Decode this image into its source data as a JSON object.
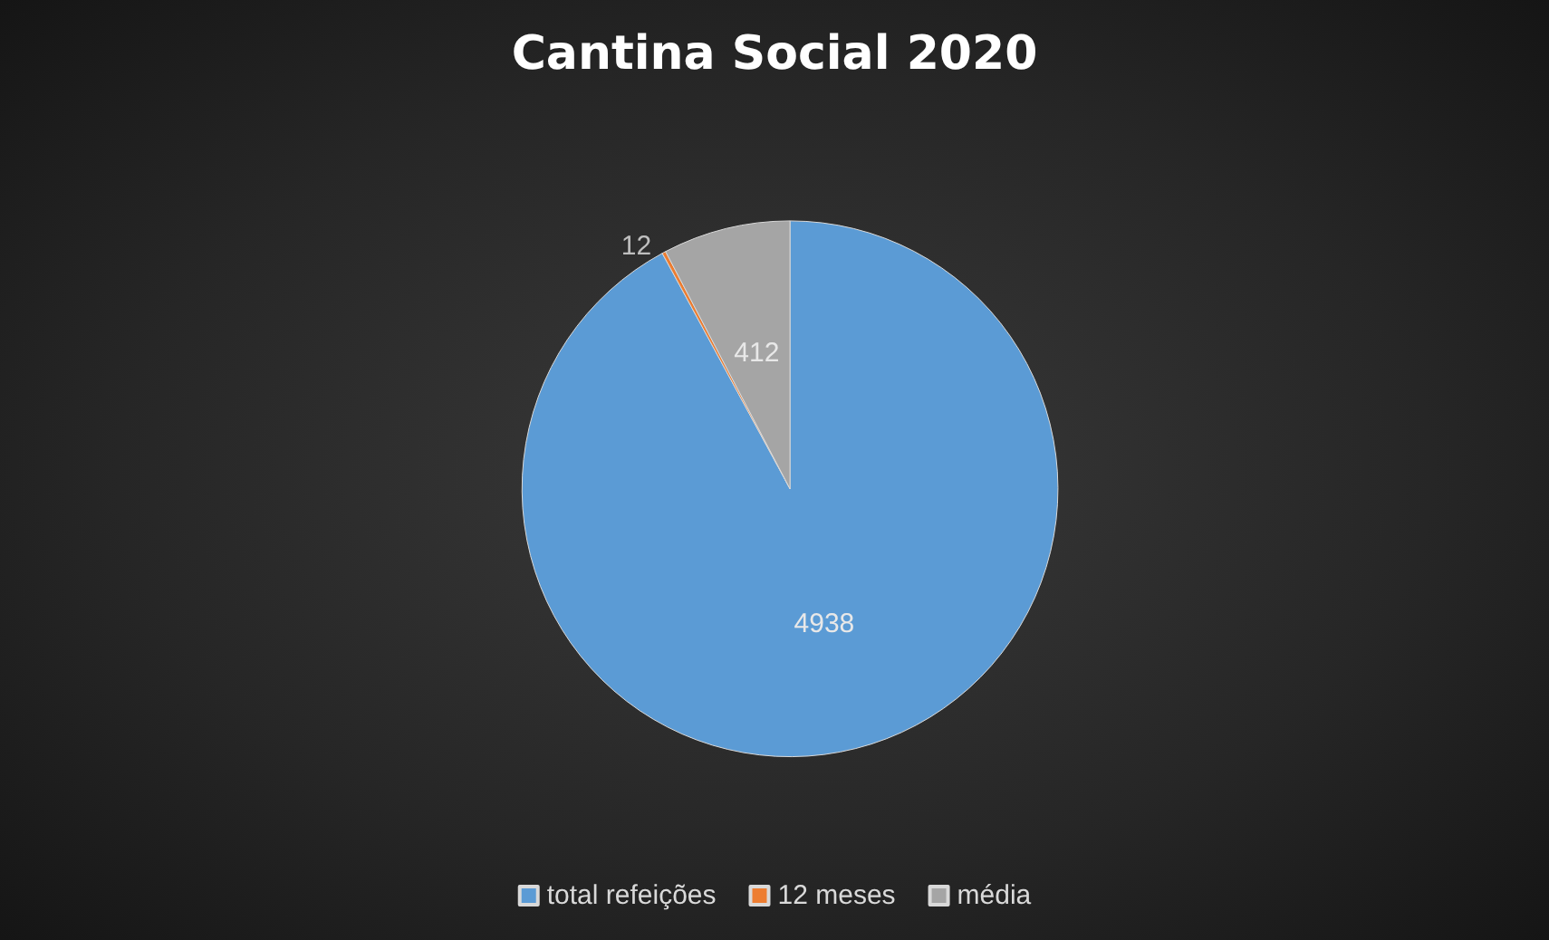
{
  "chart_data": {
    "type": "pie",
    "title": "Cantina Social 2020",
    "categories": [
      "total refeições",
      "12 meses",
      "média"
    ],
    "values": [
      4938,
      12,
      412
    ],
    "colors": [
      "#5b9bd5",
      "#ed7d31",
      "#a5a5a5"
    ],
    "data_labels": true,
    "legend": "bottom"
  }
}
